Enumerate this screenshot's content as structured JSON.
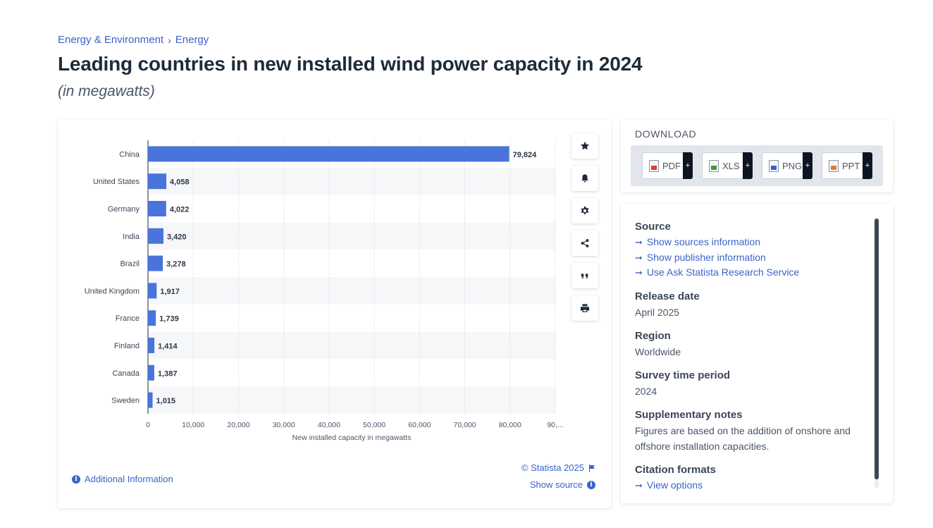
{
  "breadcrumb": {
    "item1": "Energy & Environment",
    "separator": "›",
    "item2": "Energy"
  },
  "title": "Leading countries in new installed wind power capacity in 2024",
  "subtitle": "(in megawatts)",
  "chart_data": {
    "type": "bar",
    "orientation": "horizontal",
    "categories": [
      "China",
      "United States",
      "Germany",
      "India",
      "Brazil",
      "United Kingdom",
      "France",
      "Finland",
      "Canada",
      "Sweden"
    ],
    "values": [
      79824,
      4058,
      4022,
      3420,
      3278,
      1917,
      1739,
      1414,
      1387,
      1015
    ],
    "value_labels": [
      "79,824",
      "4,058",
      "4,022",
      "3,420",
      "3,278",
      "1,917",
      "1,739",
      "1,414",
      "1,387",
      "1,015"
    ],
    "xlabel": "New installed capacity in megawatts",
    "ylabel": "",
    "xlim": [
      0,
      90000
    ],
    "x_ticks": [
      "0",
      "10,000",
      "20,000",
      "30,000",
      "40,000",
      "50,000",
      "60,000",
      "70,000",
      "80,000",
      "90,..."
    ],
    "grid": true,
    "bar_color": "#4a74dc"
  },
  "chart_tools": [
    "star-icon",
    "bell-icon",
    "gear-icon",
    "share-icon",
    "quote-icon",
    "print-icon"
  ],
  "chart_footer": {
    "copyright": "© Statista 2025",
    "show_source": "Show source",
    "additional_info": "Additional Information"
  },
  "download": {
    "title": "DOWNLOAD",
    "buttons": [
      {
        "label": "PDF",
        "plus": "+"
      },
      {
        "label": "XLS",
        "plus": "+"
      },
      {
        "label": "PNG",
        "plus": "+"
      },
      {
        "label": "PPT",
        "plus": "+"
      }
    ]
  },
  "info": {
    "source_heading": "Source",
    "source_links": [
      "Show sources information",
      "Show publisher information",
      "Use Ask Statista Research Service"
    ],
    "release_heading": "Release date",
    "release_value": "April 2025",
    "region_heading": "Region",
    "region_value": "Worldwide",
    "survey_heading": "Survey time period",
    "survey_value": "2024",
    "notes_heading": "Supplementary notes",
    "notes_value": "Figures are based on the addition of onshore and offshore installation capacities.",
    "citation_heading": "Citation formats",
    "citation_link": "View options"
  },
  "colors": {
    "accent": "#3a64c8",
    "bar": "#4a74dc",
    "heading": "#1d2b3a"
  }
}
